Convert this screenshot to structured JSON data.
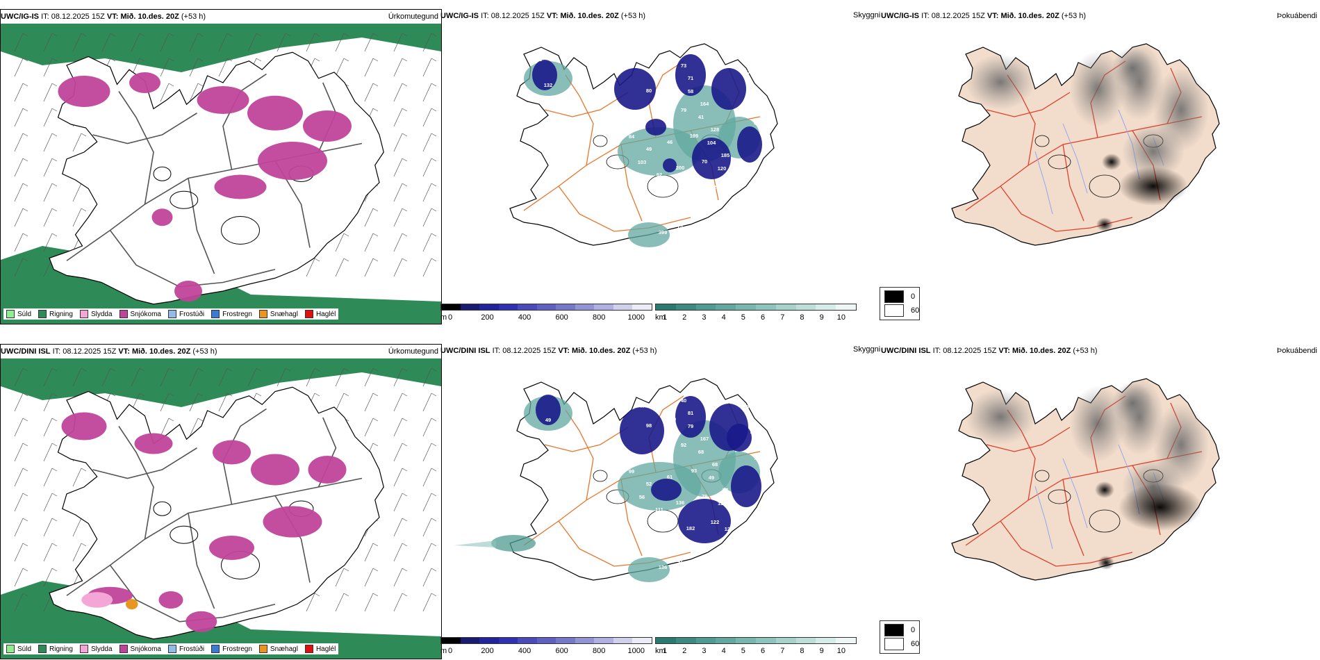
{
  "rows": [
    {
      "model": "UWC/IG-IS",
      "it_label": "IT:",
      "it_value": "08.12.2025 15Z",
      "vt_label": "VT:",
      "vt_value": "Mið. 10.des. 20Z",
      "lead": "(+53 h)",
      "precip_title": "Úrkomutegund",
      "cloud_title": "Skyggni",
      "fog_title": "Þokuábendi",
      "labels": [
        "133",
        "132",
        "56",
        "84",
        "103",
        "55",
        "89",
        "73",
        "58",
        "41",
        "104",
        "120",
        "47",
        "104",
        "147",
        "55",
        "47",
        "49",
        "62",
        "52",
        "73",
        "71",
        "164",
        "128",
        "185",
        "79",
        "174",
        "399",
        "65",
        "79",
        "199",
        "70",
        "127",
        "143",
        "92",
        "80",
        "33",
        "46",
        "200",
        "60"
      ]
    },
    {
      "model": "UWC/DINI ISL",
      "it_label": "IT:",
      "it_value": "08.12.2025 15Z",
      "vt_label": "VT:",
      "vt_value": "Mið. 10.des. 20Z",
      "lead": "(+53 h)",
      "precip_title": "Úrkomutegund",
      "cloud_title": "Skyggni",
      "fog_title": "Þokuábendi",
      "labels": [
        "123",
        "49",
        "79",
        "99",
        "56",
        "47",
        "5",
        "40",
        "79",
        "68",
        "49",
        "110",
        "126",
        "80",
        "46",
        "42",
        "72",
        "52",
        "111",
        "60",
        "47",
        "81",
        "167",
        "68",
        "77",
        "121",
        "84",
        "136",
        "19",
        "92",
        "93",
        "78",
        "122",
        "9",
        "61",
        "98",
        "97",
        "61",
        "136",
        "182",
        "134",
        "47",
        "152",
        "17",
        "55",
        "104"
      ]
    }
  ],
  "precip_legend": [
    {
      "label": "Súld",
      "color": "#90ee90"
    },
    {
      "label": "Rigning",
      "color": "#2e8b57"
    },
    {
      "label": "Slydda",
      "color": "#f4a6d7"
    },
    {
      "label": "Snjókoma",
      "color": "#c0449a"
    },
    {
      "label": "Frostúði",
      "color": "#8fbce8"
    },
    {
      "label": "Frostregn",
      "color": "#3a7bd5"
    },
    {
      "label": "Snæhagl",
      "color": "#e8961e"
    },
    {
      "label": "Haglél",
      "color": "#e01010"
    }
  ],
  "cloud_base_bar": {
    "unit": "m",
    "ticks": [
      "0",
      "200",
      "400",
      "600",
      "800",
      "1000"
    ],
    "colors": [
      "#000000",
      "#1a1a6e",
      "#23239a",
      "#3030b0",
      "#4a4ab8",
      "#6060c0",
      "#7878c8",
      "#9494d4",
      "#b0b0e0",
      "#d0d0ec",
      "#ececf6"
    ]
  },
  "visibility_bar": {
    "unit": "km",
    "ticks": [
      "1",
      "2",
      "3",
      "4",
      "5",
      "6",
      "7",
      "8",
      "9",
      "10"
    ],
    "colors": [
      "#2a7a72",
      "#3d8a82",
      "#4f9a92",
      "#62a8a0",
      "#78b6ae",
      "#8ec4bc",
      "#a6d2cb",
      "#bedfd9",
      "#d6ece8",
      "#eef7f5"
    ]
  },
  "fog_legend": {
    "high": "0",
    "low": "60"
  },
  "colors": {
    "land": "#f2dccb",
    "road": "#e8742a",
    "roadRed": "#e0402a",
    "river": "#8fa8f0",
    "coast": "#000000"
  }
}
